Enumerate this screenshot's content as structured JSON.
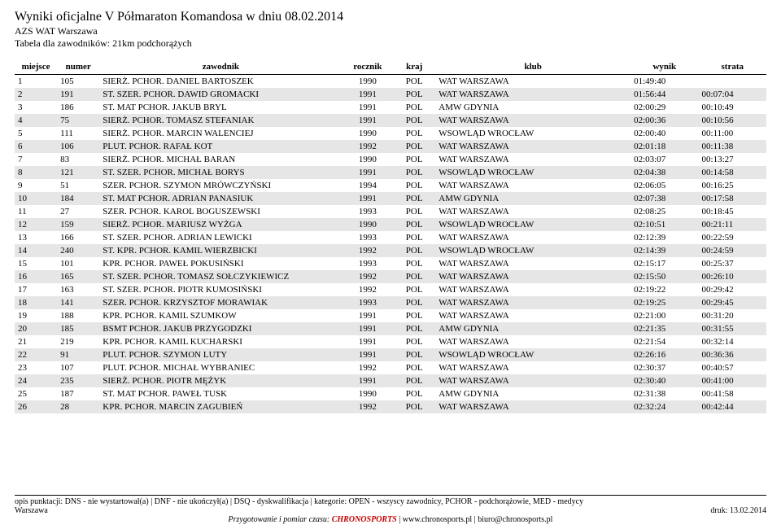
{
  "header": {
    "title": "Wyniki oficjalne V Półmaraton Komandosa w dniu 08.02.2014",
    "sub1": "AZS WAT Warszawa",
    "sub2": "Tabela dla zawodników: 21km podchorążych"
  },
  "columns": {
    "place": "miejsce",
    "number": "numer",
    "name": "zawodnik",
    "year": "rocznik",
    "country": "kraj",
    "club": "klub",
    "result": "wynik",
    "loss": "strata"
  },
  "rows": [
    {
      "place": "1",
      "num": "105",
      "name": "SIERŻ. PCHOR. DANIEL BARTOSZEK",
      "year": "1990",
      "ctry": "POL",
      "club": "WAT WARSZAWA",
      "res": "01:49:40",
      "loss": ""
    },
    {
      "place": "2",
      "num": "191",
      "name": "ST. SZER. PCHOR. DAWID GROMACKI",
      "year": "1991",
      "ctry": "POL",
      "club": "WAT WARSZAWA",
      "res": "01:56:44",
      "loss": "00:07:04"
    },
    {
      "place": "3",
      "num": "186",
      "name": "ST. MAT PCHOR. JAKUB BRYL",
      "year": "1991",
      "ctry": "POL",
      "club": "AMW GDYNIA",
      "res": "02:00:29",
      "loss": "00:10:49"
    },
    {
      "place": "4",
      "num": "75",
      "name": "SIERŻ. PCHOR. TOMASZ STEFANIAK",
      "year": "1991",
      "ctry": "POL",
      "club": "WAT WARSZAWA",
      "res": "02:00:36",
      "loss": "00:10:56"
    },
    {
      "place": "5",
      "num": "111",
      "name": "SIERŻ. PCHOR. MARCIN WALENCIEJ",
      "year": "1990",
      "ctry": "POL",
      "club": "WSOWLĄD WROCŁAW",
      "res": "02:00:40",
      "loss": "00:11:00"
    },
    {
      "place": "6",
      "num": "106",
      "name": "PLUT. PCHOR. RAFAŁ KOT",
      "year": "1992",
      "ctry": "POL",
      "club": "WAT WARSZAWA",
      "res": "02:01:18",
      "loss": "00:11:38"
    },
    {
      "place": "7",
      "num": "83",
      "name": "SIERŻ. PCHOR. MICHAŁ BARAN",
      "year": "1990",
      "ctry": "POL",
      "club": "WAT WARSZAWA",
      "res": "02:03:07",
      "loss": "00:13:27"
    },
    {
      "place": "8",
      "num": "121",
      "name": "ST. SZER. PCHOR. MICHAŁ BORYS",
      "year": "1991",
      "ctry": "POL",
      "club": "WSOWLĄD WROCŁAW",
      "res": "02:04:38",
      "loss": "00:14:58"
    },
    {
      "place": "9",
      "num": "51",
      "name": "SZER. PCHOR. SZYMON MRÓWCZYŃSKI",
      "year": "1994",
      "ctry": "POL",
      "club": "WAT WARSZAWA",
      "res": "02:06:05",
      "loss": "00:16:25"
    },
    {
      "place": "10",
      "num": "184",
      "name": "ST. MAT PCHOR. ADRIAN PANASIUK",
      "year": "1991",
      "ctry": "POL",
      "club": "AMW GDYNIA",
      "res": "02:07:38",
      "loss": "00:17:58"
    },
    {
      "place": "11",
      "num": "27",
      "name": "SZER. PCHOR. KAROL BOGUSZEWSKI",
      "year": "1993",
      "ctry": "POL",
      "club": "WAT WARSZAWA",
      "res": "02:08:25",
      "loss": "00:18:45"
    },
    {
      "place": "12",
      "num": "159",
      "name": "SIERŻ. PCHOR. MARIUSZ WYŻGA",
      "year": "1990",
      "ctry": "POL",
      "club": "WSOWLĄD WROCŁAW",
      "res": "02:10:51",
      "loss": "00:21:11"
    },
    {
      "place": "13",
      "num": "166",
      "name": "ST. SZER. PCHOR. ADRIAN LEWICKI",
      "year": "1993",
      "ctry": "POL",
      "club": "WAT WARSZAWA",
      "res": "02:12:39",
      "loss": "00:22:59"
    },
    {
      "place": "14",
      "num": "240",
      "name": "ST. KPR. PCHOR. KAMIL WIERZBICKI",
      "year": "1992",
      "ctry": "POL",
      "club": "WSOWLĄD WROCŁAW",
      "res": "02:14:39",
      "loss": "00:24:59"
    },
    {
      "place": "15",
      "num": "101",
      "name": "KPR. PCHOR. PAWEŁ POKUSIŃSKI",
      "year": "1993",
      "ctry": "POL",
      "club": "WAT WARSZAWA",
      "res": "02:15:17",
      "loss": "00:25:37"
    },
    {
      "place": "16",
      "num": "165",
      "name": "ST. SZER. PCHOR. TOMASZ SOŁCZYKIEWICZ",
      "year": "1992",
      "ctry": "POL",
      "club": "WAT WARSZAWA",
      "res": "02:15:50",
      "loss": "00:26:10"
    },
    {
      "place": "17",
      "num": "163",
      "name": "ST. SZER. PCHOR. PIOTR KUMOSIŃSKI",
      "year": "1992",
      "ctry": "POL",
      "club": "WAT WARSZAWA",
      "res": "02:19:22",
      "loss": "00:29:42"
    },
    {
      "place": "18",
      "num": "141",
      "name": "SZER. PCHOR. KRZYSZTOF MORAWIAK",
      "year": "1993",
      "ctry": "POL",
      "club": "WAT WARSZAWA",
      "res": "02:19:25",
      "loss": "00:29:45"
    },
    {
      "place": "19",
      "num": "188",
      "name": "KPR. PCHOR. KAMIL SZUMKOW",
      "year": "1991",
      "ctry": "POL",
      "club": "WAT WARSZAWA",
      "res": "02:21:00",
      "loss": "00:31:20"
    },
    {
      "place": "20",
      "num": "185",
      "name": "BSMT PCHOR. JAKUB PRZYGODZKI",
      "year": "1991",
      "ctry": "POL",
      "club": "AMW GDYNIA",
      "res": "02:21:35",
      "loss": "00:31:55"
    },
    {
      "place": "21",
      "num": "219",
      "name": "KPR. PCHOR. KAMIL KUCHARSKI",
      "year": "1991",
      "ctry": "POL",
      "club": "WAT WARSZAWA",
      "res": "02:21:54",
      "loss": "00:32:14"
    },
    {
      "place": "22",
      "num": "91",
      "name": "PLUT. PCHOR. SZYMON LUTY",
      "year": "1991",
      "ctry": "POL",
      "club": "WSOWLĄD WROCŁAW",
      "res": "02:26:16",
      "loss": "00:36:36"
    },
    {
      "place": "23",
      "num": "107",
      "name": "PLUT. PCHOR. MICHAŁ WYBRANIEC",
      "year": "1992",
      "ctry": "POL",
      "club": "WAT WARSZAWA",
      "res": "02:30:37",
      "loss": "00:40:57"
    },
    {
      "place": "24",
      "num": "235",
      "name": "SIERŻ. PCHOR. PIOTR MĘŻYK",
      "year": "1991",
      "ctry": "POL",
      "club": "WAT WARSZAWA",
      "res": "02:30:40",
      "loss": "00:41:00"
    },
    {
      "place": "25",
      "num": "187",
      "name": "ST. MAT PCHOR. PAWEŁ TUSK",
      "year": "1990",
      "ctry": "POL",
      "club": "AMW GDYNIA",
      "res": "02:31:38",
      "loss": "00:41:58"
    },
    {
      "place": "26",
      "num": "28",
      "name": "KPR. PCHOR. MARCIN ZAGUBIEŃ",
      "year": "1992",
      "ctry": "POL",
      "club": "WAT WARSZAWA",
      "res": "02:32:24",
      "loss": "00:42:44"
    }
  ],
  "footer": {
    "line1": "opis punktacji: DNS - nie wystartował(a) | DNF - nie ukończył(a) | DSQ - dyskwalifikacja | kategorie: OPEN - wszyscy zawodnicy, PCHOR - podchorążowie, MED - medycy",
    "city": "Warszawa",
    "print": "druk: 13.02.2014",
    "prep_prefix": "Przygotowanie i pomiar czasu: ",
    "chronos": "CHRONOSPORTS",
    "links": " | www.chronosports.pl | biuro@chronosports.pl"
  },
  "style": {
    "even_bg": "#e6e6e6",
    "text_color": "#000000",
    "chronos_color": "#c00000"
  }
}
